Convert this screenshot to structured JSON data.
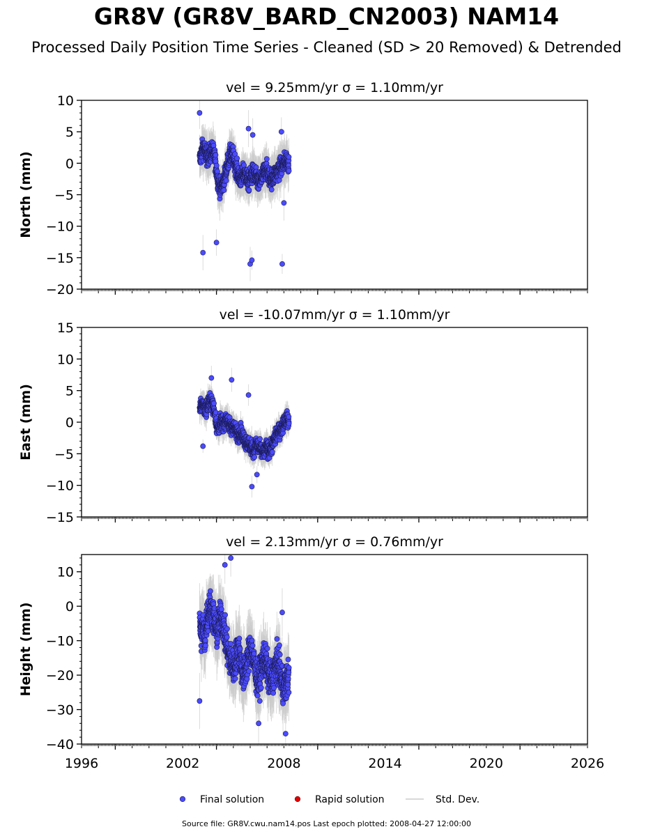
{
  "title": "GR8V (GR8V_BARD_CN2003) NAM14",
  "subtitle": "Processed Daily Position Time Series - Cleaned (SD > 20 Removed) & Detrended",
  "footer": "Source file: GR8V.cwu.nam14.pos  Last epoch plotted: 2008-04-27 12:00:00",
  "legend": [
    {
      "label": "Final solution",
      "color": "#4b4bff",
      "kind": "marker"
    },
    {
      "label": "Rapid solution",
      "color": "#e00000",
      "kind": "marker"
    },
    {
      "label": "Std. Dev.",
      "color": "#cccccc",
      "kind": "line"
    }
  ],
  "chart_data": [
    {
      "type": "scatter",
      "title": "vel = 9.25mm/yr   σ = 1.10mm/yr",
      "ylabel": "North (mm)",
      "xlim": [
        1996,
        2026
      ],
      "ylim": [
        -20,
        10
      ],
      "yticks": [
        10,
        5,
        0,
        -5,
        -10,
        -15,
        -20
      ],
      "xticks": [],
      "series": [
        {
          "x": [
            2003.0,
            2003.1,
            2003.2,
            2003.3,
            2003.45,
            2003.6,
            2003.75,
            2003.9,
            2004.0,
            2004.1,
            2004.25,
            2004.4,
            2004.55,
            2004.7,
            2004.85,
            2005.0,
            2005.15,
            2005.3,
            2005.45,
            2005.6,
            2005.75,
            2005.9,
            2006.05,
            2006.2,
            2006.35,
            2006.5,
            2006.65,
            2006.8,
            2006.95,
            2007.1,
            2007.25,
            2007.4,
            2007.55,
            2007.7,
            2007.85,
            2008.0,
            2008.15,
            2008.3
          ],
          "y": [
            0.5,
            1.5,
            2.5,
            2.0,
            1.0,
            1.5,
            2.0,
            1.0,
            -1.0,
            -3.0,
            -4.0,
            -3.0,
            -1.5,
            0.5,
            1.5,
            1.0,
            -0.5,
            -2.0,
            -2.5,
            -1.5,
            -2.0,
            -3.0,
            -2.0,
            -1.5,
            -2.5,
            -3.0,
            -2.5,
            -1.5,
            -1.0,
            -2.0,
            -2.5,
            -2.0,
            -1.5,
            -1.0,
            -0.5,
            0.0,
            0.5,
            0.0
          ],
          "outliers_x": [
            2003.0,
            2003.2,
            2004.0,
            2006.0,
            2006.1,
            2007.9,
            2005.9,
            2006.15,
            2007.85,
            2008.0
          ],
          "outliers_y": [
            8.0,
            -14.2,
            -12.6,
            -16.0,
            -15.4,
            -16.0,
            5.5,
            4.5,
            5.0,
            -6.3
          ]
        }
      ]
    },
    {
      "type": "scatter",
      "title": "vel = -10.07mm/yr   σ = 1.10mm/yr",
      "ylabel": "East (mm)",
      "xlim": [
        1996,
        2026
      ],
      "ylim": [
        -15,
        15
      ],
      "yticks": [
        15,
        10,
        5,
        0,
        -5,
        -10,
        -15
      ],
      "xticks": [],
      "series": [
        {
          "x": [
            2003.0,
            2003.1,
            2003.2,
            2003.3,
            2003.45,
            2003.6,
            2003.75,
            2003.9,
            2004.0,
            2004.1,
            2004.25,
            2004.4,
            2004.55,
            2004.7,
            2004.85,
            2005.0,
            2005.15,
            2005.3,
            2005.45,
            2005.6,
            2005.75,
            2005.9,
            2006.05,
            2006.2,
            2006.35,
            2006.5,
            2006.65,
            2006.8,
            2006.95,
            2007.1,
            2007.25,
            2007.4,
            2007.55,
            2007.7,
            2007.85,
            2008.0,
            2008.15,
            2008.3
          ],
          "y": [
            2.0,
            2.5,
            3.0,
            2.0,
            2.5,
            3.5,
            3.0,
            1.5,
            -0.5,
            -1.0,
            0.0,
            -0.5,
            0.5,
            0.0,
            -1.0,
            -0.5,
            -1.5,
            -2.0,
            -1.5,
            -2.5,
            -3.0,
            -3.5,
            -4.0,
            -4.5,
            -3.5,
            -4.0,
            -4.5,
            -5.0,
            -4.0,
            -4.5,
            -4.0,
            -3.0,
            -2.0,
            -1.5,
            -1.0,
            0.0,
            0.5,
            0.0
          ],
          "outliers_x": [
            2003.7,
            2004.9,
            2006.1,
            2006.4,
            2003.2,
            2005.9
          ],
          "outliers_y": [
            7.0,
            6.7,
            -10.2,
            -8.3,
            -3.8,
            4.3
          ]
        }
      ]
    },
    {
      "type": "scatter",
      "title": "vel = 2.13mm/yr   σ = 0.76mm/yr",
      "ylabel": "Height (mm)",
      "xlim": [
        1996,
        2026
      ],
      "ylim": [
        -40,
        15
      ],
      "yticks": [
        10,
        0,
        -10,
        -20,
        -30,
        -40
      ],
      "xticks": [
        1996,
        2002,
        2008,
        2014,
        2020,
        2026
      ],
      "series": [
        {
          "x": [
            2003.0,
            2003.1,
            2003.2,
            2003.3,
            2003.45,
            2003.6,
            2003.75,
            2003.9,
            2004.0,
            2004.1,
            2004.25,
            2004.4,
            2004.55,
            2004.7,
            2004.85,
            2005.0,
            2005.15,
            2005.3,
            2005.45,
            2005.6,
            2005.75,
            2005.9,
            2006.05,
            2006.2,
            2006.35,
            2006.5,
            2006.65,
            2006.8,
            2006.95,
            2007.1,
            2007.25,
            2007.4,
            2007.55,
            2007.7,
            2007.85,
            2008.0,
            2008.15,
            2008.3
          ],
          "y": [
            -5.0,
            -8.0,
            -6.0,
            -10.0,
            -3.0,
            0.0,
            -2.0,
            -5.0,
            -8.0,
            -6.0,
            -3.0,
            -5.0,
            -10.0,
            -14.0,
            -16.0,
            -18.0,
            -15.0,
            -12.0,
            -17.0,
            -20.0,
            -18.0,
            -14.0,
            -12.0,
            -16.0,
            -20.0,
            -22.0,
            -18.0,
            -15.0,
            -17.0,
            -20.0,
            -22.0,
            -19.0,
            -16.0,
            -18.0,
            -21.0,
            -24.0,
            -22.0,
            -20.0
          ],
          "outliers_x": [
            2003.0,
            2004.5,
            2004.85,
            2007.9,
            2008.1,
            2006.5
          ],
          "outliers_y": [
            -27.5,
            12.0,
            14.0,
            -1.8,
            -37.0,
            -34.0
          ]
        }
      ]
    }
  ]
}
